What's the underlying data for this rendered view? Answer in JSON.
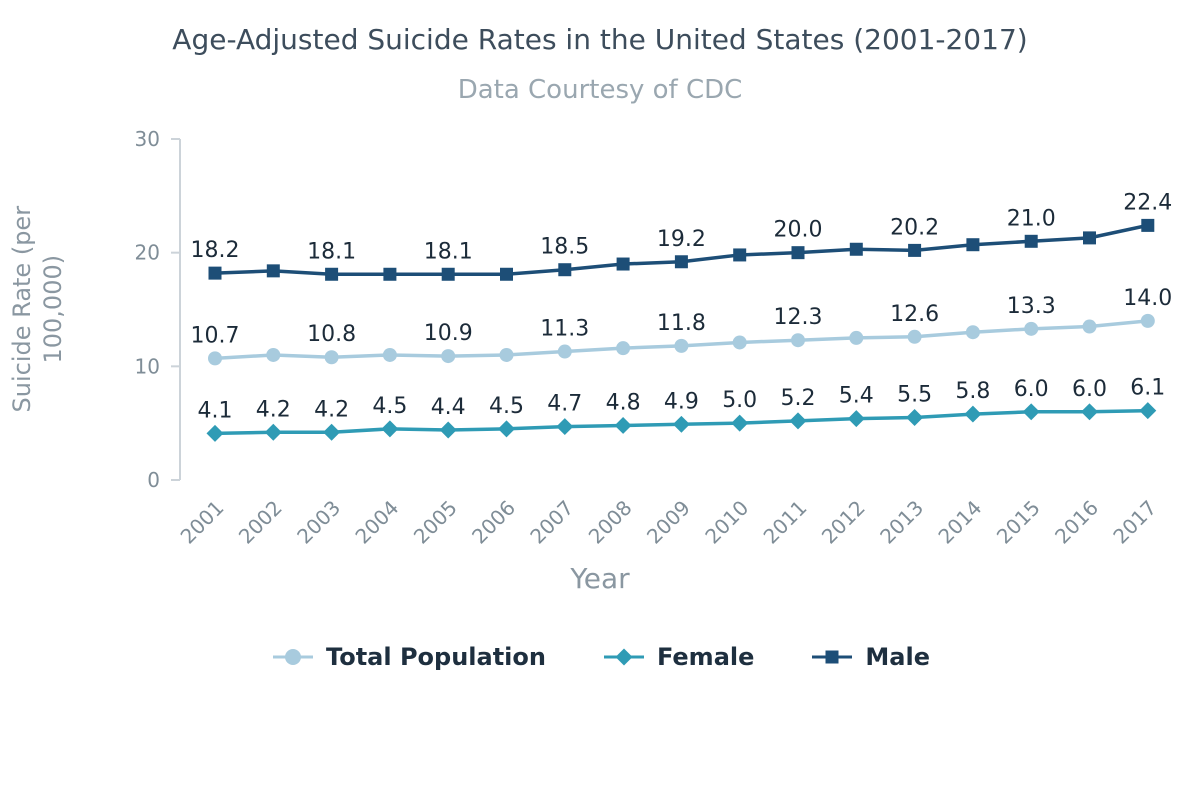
{
  "chart_data": {
    "type": "line",
    "title": "Age-Adjusted Suicide Rates in the United States (2001-2017)",
    "subtitle": "Data Courtesy of CDC",
    "xlabel": "Year",
    "ylabel": "Suicide Rate (per 100,000)",
    "ylim": [
      0,
      30
    ],
    "yticks": [
      0,
      10,
      20,
      30
    ],
    "grid": false,
    "legend_position": "bottom",
    "categories": [
      "2001",
      "2002",
      "2003",
      "2004",
      "2005",
      "2006",
      "2007",
      "2008",
      "2009",
      "2010",
      "2011",
      "2012",
      "2013",
      "2014",
      "2015",
      "2016",
      "2017"
    ],
    "series": [
      {
        "name": "Total Population",
        "marker": "circle",
        "color": "#a8cbde",
        "values": [
          10.7,
          11.0,
          10.8,
          11.0,
          10.9,
          11.0,
          11.3,
          11.6,
          11.8,
          12.1,
          12.3,
          12.5,
          12.6,
          13.0,
          13.3,
          13.5,
          14.0
        ],
        "labels": [
          "10.7",
          "",
          "10.8",
          "",
          "10.9",
          "",
          "11.3",
          "",
          "11.8",
          "",
          "12.3",
          "",
          "12.6",
          "",
          "13.3",
          "",
          "14.0"
        ]
      },
      {
        "name": "Female",
        "marker": "diamond",
        "color": "#2f9bb5",
        "values": [
          4.1,
          4.2,
          4.2,
          4.5,
          4.4,
          4.5,
          4.7,
          4.8,
          4.9,
          5.0,
          5.2,
          5.4,
          5.5,
          5.8,
          6.0,
          6.0,
          6.1
        ],
        "labels": [
          "4.1",
          "4.2",
          "4.2",
          "4.5",
          "4.4",
          "4.5",
          "4.7",
          "4.8",
          "4.9",
          "5.0",
          "5.2",
          "5.4",
          "5.5",
          "5.8",
          "6.0",
          "6.0",
          "6.1"
        ]
      },
      {
        "name": "Male",
        "marker": "square",
        "color": "#1d4e77",
        "values": [
          18.2,
          18.4,
          18.1,
          18.1,
          18.1,
          18.1,
          18.5,
          19.0,
          19.2,
          19.8,
          20.0,
          20.3,
          20.2,
          20.7,
          21.0,
          21.3,
          22.4
        ],
        "labels": [
          "18.2",
          "",
          "18.1",
          "",
          "18.1",
          "",
          "18.5",
          "",
          "19.2",
          "",
          "20.0",
          "",
          "20.2",
          "",
          "21.0",
          "",
          "22.4"
        ]
      }
    ],
    "style": {
      "title_color": "#3d4d5c",
      "subtitle_color": "#9aa7b0",
      "axis_label_color": "#8a97a1",
      "tick_label_color": "#7f8d97",
      "axis_line_color": "#ccd3d9",
      "data_label_color": "#1c2b39",
      "legend_text_color": "#1e2f3f",
      "background": "#ffffff"
    }
  }
}
